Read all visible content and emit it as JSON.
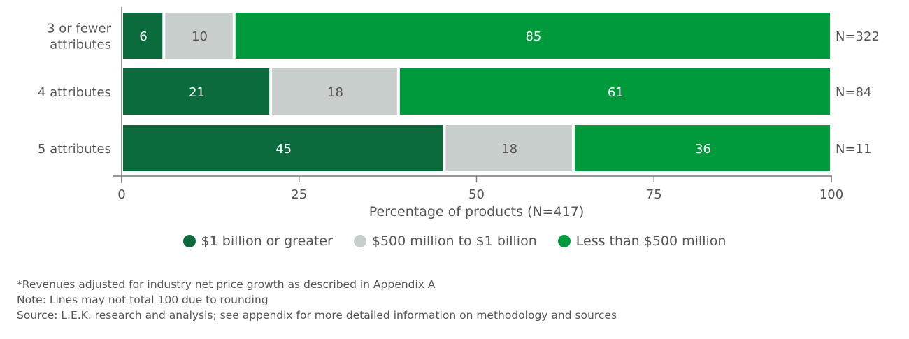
{
  "chart_data": {
    "type": "bar",
    "orientation": "horizontal",
    "stacked": true,
    "categories": [
      [
        "3 or fewer",
        "attributes"
      ],
      [
        "4 attributes"
      ],
      [
        "5 attributes"
      ]
    ],
    "n_labels": [
      "N=322",
      "N=84",
      "N=11"
    ],
    "series": [
      {
        "name": "$1 billion or greater",
        "values": [
          6,
          21,
          45
        ],
        "color": "#0b6b3d"
      },
      {
        "name": "$500 million to $1 billion",
        "values": [
          10,
          18,
          18
        ],
        "color": "#c8cecc"
      },
      {
        "name": "Less than $500 million",
        "values": [
          85,
          61,
          36
        ],
        "color": "#009a3d"
      }
    ],
    "xlabel": "Percentage of products (N=417)",
    "xlim": [
      0,
      100
    ],
    "xticks": [
      "0",
      "25",
      "50",
      "75",
      "100"
    ],
    "legend_position": "bottom",
    "grid": false
  },
  "notes": [
    "*Revenues adjusted for industry net price growth as described in Appendix A",
    "Note: Lines may not total 100 due to rounding",
    "Source: L.E.K. research and analysis; see appendix for more detailed information on methodology and sources"
  ]
}
